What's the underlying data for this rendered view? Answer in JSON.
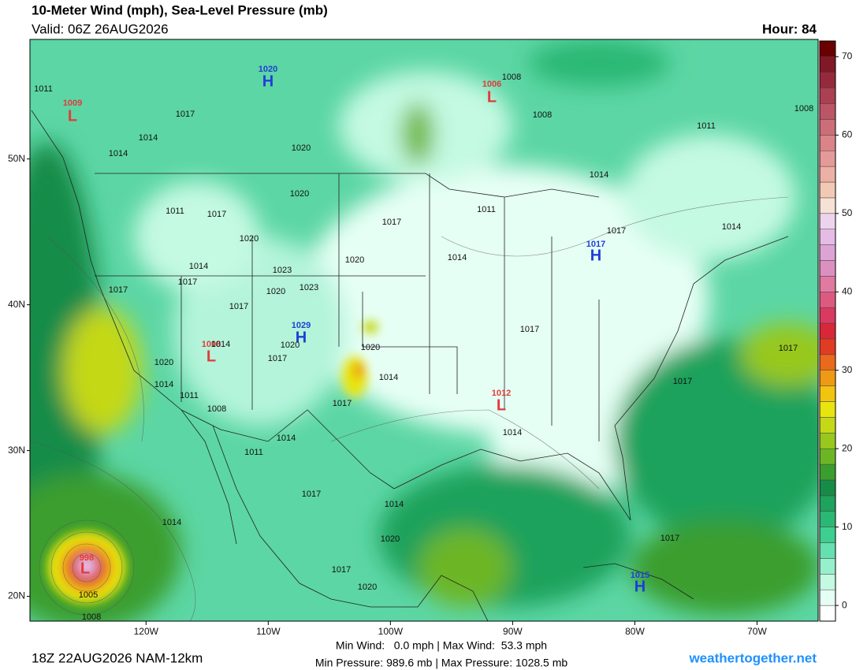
{
  "header": {
    "title": "10-Meter Wind (mph), Sea-Level Pressure (mb)",
    "valid": "Valid: 06Z 26AUG2026",
    "hour": "Hour: 84"
  },
  "map": {
    "lonlim": [
      -129.5,
      -65
    ],
    "latlim": [
      18.3,
      58.2
    ],
    "lonticks": [
      {
        "value": -120,
        "label": "120W"
      },
      {
        "value": -110,
        "label": "110W"
      },
      {
        "value": -100,
        "label": "100W"
      },
      {
        "value": -90,
        "label": "90W"
      },
      {
        "value": -80,
        "label": "80W"
      },
      {
        "value": -70,
        "label": "70W"
      }
    ],
    "latticks": [
      {
        "value": 20,
        "label": "20N"
      },
      {
        "value": 30,
        "label": "30N"
      },
      {
        "value": 40,
        "label": "40N"
      },
      {
        "value": 50,
        "label": "50N"
      }
    ],
    "centers": [
      {
        "letter": "L",
        "value": 1009
      },
      {
        "letter": "H",
        "value": 1020
      },
      {
        "letter": "L",
        "value": 1006
      },
      {
        "letter": "H",
        "value": 1017
      },
      {
        "letter": "H",
        "value": 1029
      },
      {
        "letter": "L",
        "value": 1008
      },
      {
        "letter": "L",
        "value": 1012
      },
      {
        "letter": "H",
        "value": 1015
      },
      {
        "letter": "L",
        "value": 998
      }
    ],
    "isobar_labels": [
      1011,
      1017,
      1014,
      1014,
      1020,
      1020,
      1011,
      1017,
      1020,
      1014,
      1023,
      1017,
      1017,
      1020,
      1023,
      1017,
      1020,
      1017,
      1014,
      1011,
      1008,
      1008,
      1011,
      1014,
      1017,
      1014,
      1008,
      1020,
      1020,
      1017,
      1014,
      1020,
      1014,
      1011,
      1008,
      1014,
      1017,
      1014,
      1011,
      1017,
      1014,
      1020,
      1017,
      1020,
      1017,
      1014,
      1017,
      1014,
      1005,
      1008,
      1017,
      1017
    ]
  },
  "colorbar": {
    "range": [
      -2,
      72
    ],
    "ticks": [
      0,
      10,
      20,
      30,
      40,
      50,
      60,
      70
    ],
    "colors": [
      "#ffffff",
      "#e6fff4",
      "#c4f9e2",
      "#96f0cc",
      "#66e0ae",
      "#3ecf90",
      "#2bb874",
      "#1fa25c",
      "#178c48",
      "#3a9e2e",
      "#6cb626",
      "#98c81e",
      "#c4d818",
      "#e8e410",
      "#f0c410",
      "#ee9a14",
      "#e86a1c",
      "#e03c24",
      "#d82838",
      "#d83a60",
      "#dc5a80",
      "#e07aa0",
      "#dc90c0",
      "#dca4d4",
      "#e4bce4",
      "#ecd4ee",
      "#f6e2d4",
      "#f2cab4",
      "#ecb0a4",
      "#e49a98",
      "#da8488",
      "#cc6e78",
      "#bc5666",
      "#aa4052",
      "#962a3c",
      "#801826",
      "#6a0000"
    ]
  },
  "footer": {
    "run": "18Z 22AUG2026 NAM-12km",
    "wind": "Min Wind:   0.0 mph | Max Wind:  53.3 mph",
    "pressure": "Min Pressure: 989.6 mb | Max Pressure: 1028.5 mb",
    "site": "weathertogether.net"
  }
}
